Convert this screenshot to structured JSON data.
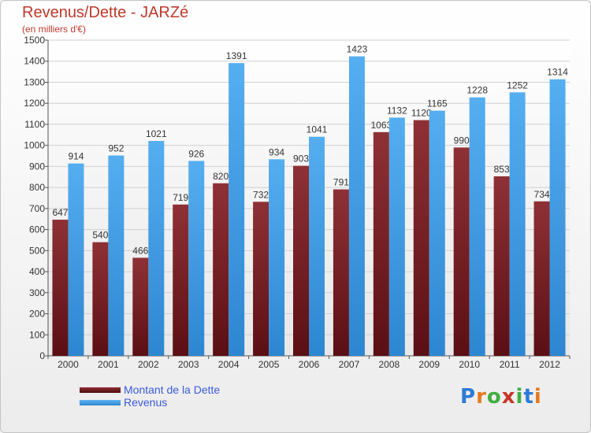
{
  "title": "Revenus/Dette - JARZé",
  "subtitle": "(en milliers d'€)",
  "logo": {
    "text": "Proxiti",
    "letter_colors": [
      "#2c7bd6",
      "#e6791e",
      "#3fae3f",
      "#c9352a",
      "#3fae3f",
      "#2c7bd6",
      "#e6791e"
    ]
  },
  "chart_data": {
    "type": "bar",
    "categories": [
      "2000",
      "2001",
      "2002",
      "2003",
      "2004",
      "2005",
      "2006",
      "2007",
      "2008",
      "2009",
      "2010",
      "2011",
      "2012"
    ],
    "series": [
      {
        "name": "Montant de la Dette",
        "color": "#7b2a2e",
        "values": [
          647,
          540,
          466,
          719,
          820,
          732,
          903,
          791,
          1063,
          1120,
          990,
          853,
          734
        ],
        "labels": [
          "647",
          "540",
          "466",
          "719",
          "820",
          "732",
          "903",
          "791",
          "1063",
          "1120",
          "990",
          "853",
          "734"
        ]
      },
      {
        "name": "Revenus",
        "color": "#4aa3e6",
        "values": [
          914,
          952,
          1021,
          926,
          1391,
          934,
          1041,
          1423,
          1132,
          1165,
          1228,
          1252,
          1314
        ],
        "labels": [
          "914",
          "952",
          "1021",
          "926",
          "1391",
          "934",
          "1041",
          "1423",
          "1132",
          "1165",
          "1228",
          "1252",
          "1314"
        ]
      }
    ],
    "ylim": [
      0,
      1500
    ],
    "yticks": [
      0,
      100,
      200,
      300,
      400,
      500,
      600,
      700,
      800,
      900,
      1000,
      1100,
      1200,
      1300,
      1400,
      1500
    ],
    "grid": true,
    "legend_position": "bottom-left"
  }
}
